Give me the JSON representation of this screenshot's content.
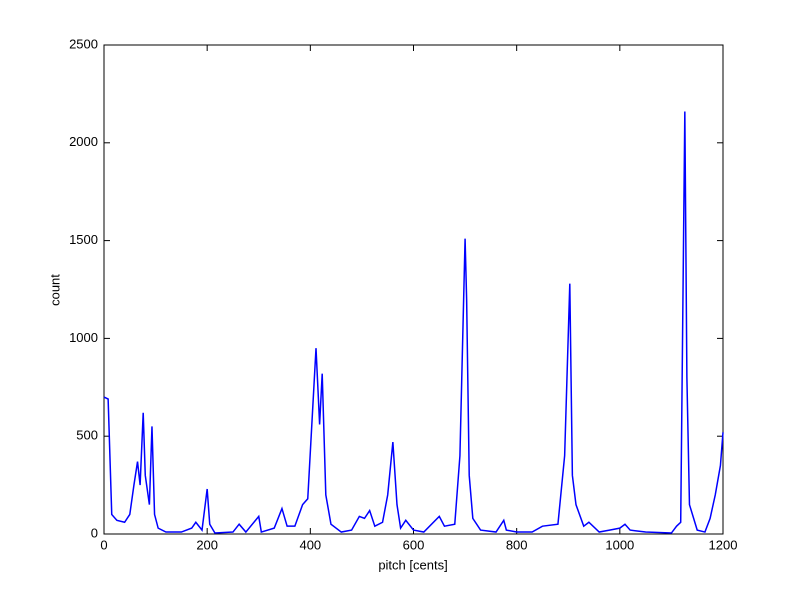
{
  "chart_data": {
    "type": "line",
    "x_label": "pitch [cents]",
    "y_label": "count",
    "xlim": [
      0,
      1200
    ],
    "xticks": [
      0,
      200,
      400,
      600,
      800,
      1000,
      1200
    ],
    "ylim": [
      0,
      2500
    ],
    "yticks": [
      0,
      500,
      1000,
      1500,
      2000,
      2500
    ],
    "grid": false,
    "series": [
      {
        "color": "#0000ff",
        "x": [
          0,
          8,
          15,
          25,
          40,
          50,
          58,
          65,
          70,
          76,
          80,
          88,
          93,
          98,
          105,
          120,
          150,
          170,
          178,
          190,
          200,
          205,
          215,
          250,
          262,
          275,
          300,
          305,
          330,
          345,
          355,
          370,
          385,
          395,
          411,
          418,
          423,
          430,
          440,
          460,
          480,
          495,
          505,
          515,
          525,
          540,
          550,
          560,
          568,
          575,
          585,
          600,
          620,
          650,
          660,
          680,
          690,
          700,
          703,
          708,
          715,
          730,
          760,
          775,
          780,
          800,
          830,
          850,
          880,
          893,
          903,
          908,
          915,
          930,
          940,
          960,
          980,
          1000,
          1010,
          1020,
          1050,
          1100,
          1110,
          1118,
          1126,
          1130,
          1135,
          1150,
          1165,
          1175,
          1185,
          1195,
          1200
        ],
        "values": [
          700,
          690,
          100,
          70,
          60,
          100,
          250,
          370,
          250,
          620,
          300,
          150,
          550,
          100,
          30,
          10,
          10,
          30,
          60,
          20,
          230,
          50,
          5,
          10,
          50,
          10,
          90,
          10,
          30,
          130,
          40,
          40,
          150,
          180,
          950,
          560,
          820,
          200,
          50,
          10,
          20,
          90,
          80,
          120,
          40,
          60,
          200,
          470,
          150,
          30,
          70,
          20,
          10,
          90,
          40,
          50,
          400,
          1510,
          1200,
          300,
          80,
          20,
          10,
          70,
          20,
          10,
          10,
          40,
          50,
          400,
          1280,
          300,
          150,
          40,
          60,
          10,
          20,
          30,
          50,
          20,
          10,
          5,
          40,
          60,
          2160,
          800,
          150,
          20,
          10,
          80,
          200,
          350,
          520
        ]
      }
    ]
  }
}
